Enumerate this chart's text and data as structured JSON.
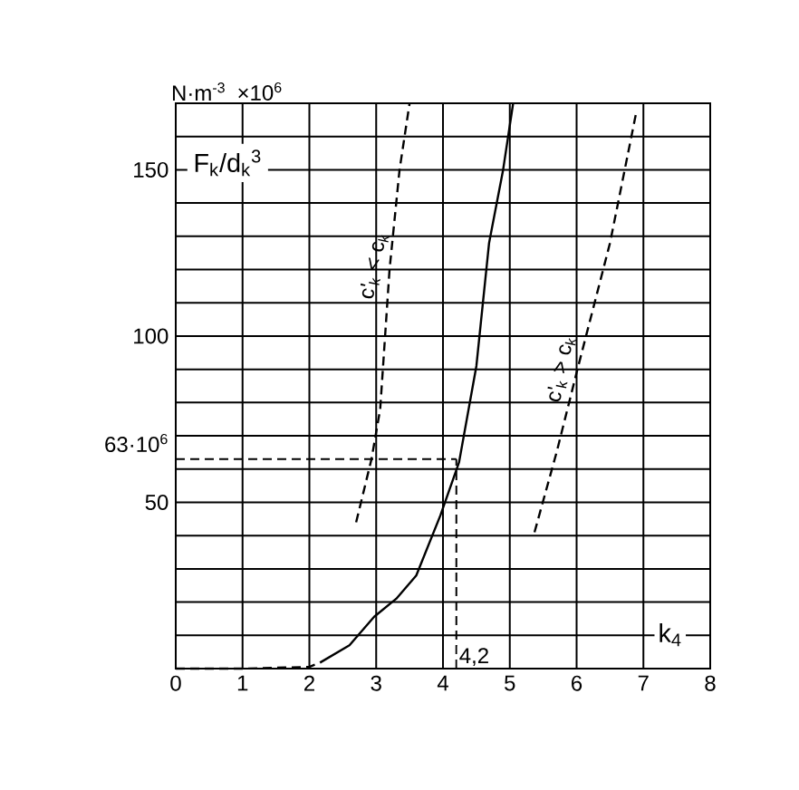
{
  "chart_data": {
    "type": "line",
    "ylabel": "F$_{k}$/d$_{k}$$^{3}$",
    "xlabel": "k$_{4}$",
    "annotations": [
      "N·m$^{-3}$",
      "×10$^{6}$"
    ],
    "xlim": [
      0,
      8
    ],
    "ylim": [
      0,
      170
    ],
    "xticks": [
      0,
      1,
      2,
      3,
      4,
      5,
      6,
      7,
      8
    ],
    "yticks": [
      {
        "value": 0,
        "label": null
      },
      {
        "value": 10,
        "label": null
      },
      {
        "value": 20,
        "label": null
      },
      {
        "value": 30,
        "label": null
      },
      {
        "value": 40,
        "label": null
      },
      50,
      {
        "value": 60,
        "label": null
      },
      {
        "value": 70,
        "label": null
      },
      {
        "value": 80,
        "label": null
      },
      {
        "value": 90,
        "label": null
      },
      100,
      {
        "value": 110,
        "label": null
      },
      {
        "value": 120,
        "label": null
      },
      {
        "value": 130,
        "label": null
      },
      {
        "value": 140,
        "label": null
      },
      150,
      {
        "value": 160,
        "label": null
      },
      {
        "value": 170,
        "label": null
      }
    ],
    "grid": true,
    "marker": "none",
    "series": [
      {
        "color": "#000000",
        "line_style": "dashed",
        "x": [
          0,
          1,
          2,
          2.16
        ],
        "values": [
          0,
          0,
          0.5,
          1.8
        ]
      },
      {
        "color": "#000000",
        "line_style": "solid",
        "x": [
          2.16,
          2.6,
          2.97,
          3.3,
          3.6,
          3.96,
          4.24,
          4.5,
          4.69,
          4.9,
          5.05
        ],
        "values": [
          1.8,
          7,
          15.6,
          21,
          28,
          46,
          62,
          91,
          128,
          150,
          170
        ]
      },
      {
        "name": "c'$_{k}$ < c$_{k}$",
        "color": "#000000",
        "line_style": "dashed",
        "x": [
          2.7,
          2.93,
          3.06,
          3.2,
          3.35,
          3.5
        ],
        "values": [
          44,
          63,
          78,
          120,
          150,
          170
        ]
      },
      {
        "name": "c'$_{k}$ > c$_{k}$",
        "color": "#000000",
        "line_style": "dashed",
        "x": [
          5.37,
          5.7,
          6.0,
          6.5,
          6.9
        ],
        "values": [
          41,
          65,
          89,
          128,
          168
        ]
      }
    ],
    "ref_lines": [
      {
        "axis": "y",
        "value": 63,
        "label": "63·10$^{6}$",
        "line_style": "dashed",
        "color": "#000000"
      },
      {
        "axis": "x",
        "value": 4.2,
        "label": "4,2",
        "line_style": "dashed",
        "color": "#000000"
      }
    ]
  }
}
